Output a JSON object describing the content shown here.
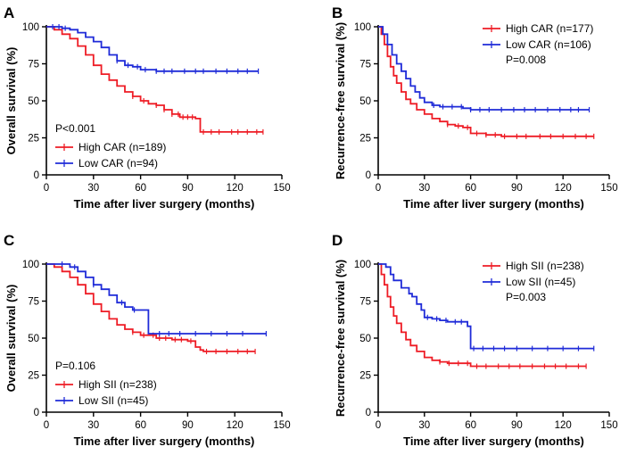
{
  "colors": {
    "high": "#ee1c25",
    "low": "#1f2bd8",
    "axis": "#000000"
  },
  "chart_data": [
    {
      "panel": "A",
      "type": "line",
      "xlabel": "Time after liver surgery (months)",
      "ylabel": "Overall survival (%)",
      "xlim": [
        0,
        150
      ],
      "ylim": [
        0,
        100
      ],
      "xticks": [
        0,
        30,
        60,
        90,
        120,
        150
      ],
      "yticks": [
        0,
        25,
        50,
        75,
        100
      ],
      "annotation": "P<0.001",
      "legend_position": "bottom-left",
      "series": [
        {
          "name": "High CAR (n=189)",
          "color_key": "high",
          "x": [
            0,
            5,
            10,
            15,
            20,
            25,
            30,
            35,
            40,
            45,
            50,
            55,
            60,
            65,
            70,
            75,
            80,
            85,
            90,
            95,
            98,
            100,
            110,
            120,
            130,
            138
          ],
          "y": [
            100,
            98,
            95,
            92,
            87,
            81,
            74,
            68,
            64,
            60,
            56,
            53,
            50,
            48,
            47,
            44,
            41,
            39,
            39,
            38,
            29,
            29,
            29,
            29,
            29,
            29
          ],
          "censor_x": [
            55,
            62,
            70,
            75,
            80,
            84,
            87,
            90,
            93,
            100,
            105,
            110,
            118,
            122,
            128,
            134,
            138
          ]
        },
        {
          "name": "Low CAR (n=94)",
          "color_key": "low",
          "x": [
            0,
            5,
            10,
            15,
            20,
            25,
            30,
            35,
            40,
            45,
            50,
            55,
            60,
            70,
            80,
            100,
            120,
            135
          ],
          "y": [
            100,
            100,
            99,
            98,
            96,
            93,
            90,
            86,
            81,
            77,
            74,
            73,
            71,
            70,
            70,
            70,
            70,
            70
          ],
          "censor_x": [
            4,
            8,
            12,
            45,
            52,
            58,
            63,
            70,
            75,
            80,
            88,
            95,
            100,
            108,
            115,
            122,
            128,
            135
          ]
        }
      ]
    },
    {
      "panel": "B",
      "type": "line",
      "xlabel": "Time after liver surgery (months)",
      "ylabel": "Recurrence-free survival (%)",
      "xlim": [
        0,
        150
      ],
      "ylim": [
        0,
        100
      ],
      "xticks": [
        0,
        30,
        60,
        90,
        120,
        150
      ],
      "yticks": [
        0,
        25,
        50,
        75,
        100
      ],
      "annotation": "P=0.008",
      "legend_position": "top-right",
      "series": [
        {
          "name": "High CAR (n=177)",
          "color_key": "high",
          "x": [
            0,
            2,
            4,
            6,
            8,
            10,
            12,
            15,
            18,
            21,
            25,
            30,
            35,
            40,
            45,
            50,
            55,
            60,
            70,
            80,
            100,
            120,
            140
          ],
          "y": [
            100,
            95,
            88,
            80,
            73,
            67,
            62,
            56,
            51,
            48,
            44,
            41,
            38,
            36,
            34,
            33,
            32,
            28,
            27,
            26,
            26,
            26,
            26
          ],
          "censor_x": [
            45,
            52,
            58,
            64,
            70,
            76,
            82,
            90,
            96,
            105,
            112,
            120,
            128,
            135,
            140
          ]
        },
        {
          "name": "Low CAR (n=106)",
          "color_key": "low",
          "x": [
            0,
            3,
            6,
            9,
            12,
            15,
            18,
            21,
            24,
            27,
            30,
            35,
            40,
            45,
            55,
            60,
            80,
            100,
            120,
            137
          ],
          "y": [
            100,
            95,
            88,
            81,
            75,
            70,
            65,
            60,
            56,
            52,
            49,
            47,
            46,
            46,
            45,
            44,
            44,
            44,
            44,
            44
          ],
          "censor_x": [
            36,
            42,
            48,
            54,
            60,
            66,
            72,
            80,
            88,
            95,
            102,
            110,
            118,
            125,
            130,
            137
          ]
        }
      ]
    },
    {
      "panel": "C",
      "type": "line",
      "xlabel": "Time after liver surgery (months)",
      "ylabel": "Overall survival (%)",
      "xlim": [
        0,
        150
      ],
      "ylim": [
        0,
        100
      ],
      "xticks": [
        0,
        30,
        60,
        90,
        120,
        150
      ],
      "yticks": [
        0,
        25,
        50,
        75,
        100
      ],
      "annotation": "P=0.106",
      "legend_position": "bottom-left",
      "series": [
        {
          "name": "High SII (n=238)",
          "color_key": "high",
          "x": [
            0,
            5,
            10,
            15,
            20,
            25,
            30,
            35,
            40,
            45,
            50,
            55,
            60,
            70,
            80,
            90,
            95,
            98,
            100,
            110,
            120,
            133
          ],
          "y": [
            100,
            98,
            95,
            91,
            86,
            80,
            73,
            68,
            63,
            59,
            56,
            54,
            52,
            50,
            49,
            48,
            44,
            42,
            41,
            41,
            41,
            41
          ],
          "censor_x": [
            55,
            62,
            68,
            72,
            76,
            82,
            86,
            92,
            102,
            108,
            115,
            122,
            128,
            133
          ]
        },
        {
          "name": "Low SII (n=45)",
          "color_key": "low",
          "x": [
            0,
            8,
            15,
            20,
            25,
            30,
            35,
            40,
            45,
            50,
            55,
            62,
            65,
            70,
            80,
            100,
            120,
            140
          ],
          "y": [
            100,
            100,
            98,
            95,
            91,
            86,
            83,
            79,
            74,
            71,
            69,
            69,
            53,
            53,
            53,
            53,
            53,
            53
          ],
          "censor_x": [
            10,
            18,
            30,
            48,
            56,
            72,
            78,
            85,
            95,
            105,
            115,
            125,
            140
          ]
        }
      ]
    },
    {
      "panel": "D",
      "type": "line",
      "xlabel": "Time after liver surgery (months)",
      "ylabel": "Recurrence-free survival (%)",
      "xlim": [
        0,
        150
      ],
      "ylim": [
        0,
        100
      ],
      "xticks": [
        0,
        30,
        60,
        90,
        120,
        150
      ],
      "yticks": [
        0,
        25,
        50,
        75,
        100
      ],
      "annotation": "P=0.003",
      "legend_position": "top-right",
      "series": [
        {
          "name": "High SII (n=238)",
          "color_key": "high",
          "x": [
            0,
            2,
            4,
            6,
            8,
            10,
            12,
            15,
            18,
            21,
            25,
            30,
            35,
            40,
            45,
            50,
            60,
            70,
            80,
            100,
            120,
            135
          ],
          "y": [
            100,
            93,
            86,
            78,
            71,
            65,
            60,
            54,
            49,
            45,
            41,
            37,
            35,
            34,
            33,
            33,
            31,
            31,
            31,
            31,
            31,
            31
          ],
          "censor_x": [
            40,
            46,
            52,
            58,
            64,
            70,
            78,
            85,
            92,
            100,
            108,
            115,
            122,
            130,
            135
          ]
        },
        {
          "name": "Low SII (n=45)",
          "color_key": "low",
          "x": [
            0,
            5,
            8,
            10,
            15,
            20,
            22,
            25,
            28,
            30,
            35,
            40,
            45,
            50,
            55,
            58,
            60,
            70,
            80,
            100,
            120,
            140
          ],
          "y": [
            100,
            98,
            93,
            89,
            84,
            80,
            78,
            73,
            69,
            64,
            63,
            62,
            61,
            61,
            61,
            58,
            43,
            43,
            43,
            43,
            43,
            43
          ],
          "censor_x": [
            32,
            38,
            44,
            50,
            54,
            62,
            68,
            75,
            82,
            90,
            100,
            110,
            120,
            130,
            140
          ]
        }
      ]
    }
  ]
}
